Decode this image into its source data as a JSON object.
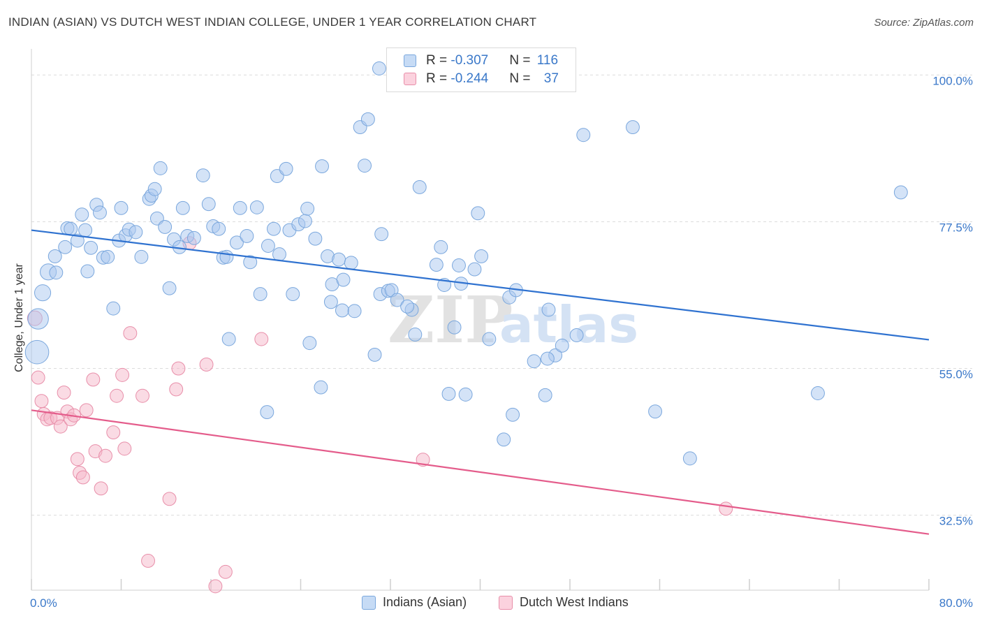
{
  "title": "INDIAN (ASIAN) VS DUTCH WEST INDIAN COLLEGE, UNDER 1 YEAR CORRELATION CHART",
  "source": "Source: ZipAtlas.com",
  "watermark": {
    "zip": "ZIP",
    "atlas": "atlas"
  },
  "legend_top": {
    "rows": [
      {
        "r_label": "R = ",
        "r_value": "-0.307",
        "n_label": "N = ",
        "n_value": "116",
        "color": "#a9c8ef"
      },
      {
        "r_label": "R = ",
        "r_value": "-0.244",
        "n_label": "N = ",
        "n_value": "37",
        "color": "#f5b8c9"
      }
    ]
  },
  "legend_bottom": {
    "items": [
      {
        "label": "Indians (Asian)",
        "color": "#a9c8ef"
      },
      {
        "label": "Dutch West Indians",
        "color": "#f5b8c9"
      }
    ]
  },
  "chart_data": {
    "type": "scatter",
    "title": "INDIAN (ASIAN) VS DUTCH WEST INDIAN COLLEGE, UNDER 1 YEAR CORRELATION CHART",
    "xlabel": "",
    "ylabel": "College, Under 1 year",
    "xlim": [
      0,
      80
    ],
    "ylim": [
      21,
      104
    ],
    "x_tick_labels": [
      "0.0%",
      "80.0%"
    ],
    "y_ticks": [
      32.5,
      55.0,
      77.5,
      100.0
    ],
    "y_tick_labels": [
      "32.5%",
      "55.0%",
      "77.5%",
      "100.0%"
    ],
    "grid": true,
    "series": [
      {
        "name": "Indians (Asian)",
        "color": "#a9c8ef",
        "edge": "#7aa7dd",
        "trend": {
          "x": [
            0,
            80
          ],
          "y": [
            76.2,
            59.4
          ],
          "color": "#2f72d0"
        },
        "points": [
          [
            0.5,
            57.5,
            1.6
          ],
          [
            0.6,
            62.6,
            1.4
          ],
          [
            1.0,
            66.6,
            1.1
          ],
          [
            1.5,
            69.8,
            1.1
          ],
          [
            2.2,
            69.7,
            0.9
          ],
          [
            2.1,
            72.2,
            0.9
          ],
          [
            3.0,
            73.6,
            0.9
          ],
          [
            3.2,
            76.5,
            0.9
          ],
          [
            3.5,
            76.4,
            0.9
          ],
          [
            4.1,
            74.6,
            0.9
          ],
          [
            4.5,
            78.6,
            0.9
          ],
          [
            4.8,
            76.2,
            0.9
          ],
          [
            5.3,
            73.5,
            0.9
          ],
          [
            5.8,
            80.1,
            0.9
          ],
          [
            6.1,
            78.9,
            0.9
          ],
          [
            6.4,
            72.0,
            0.9
          ],
          [
            6.8,
            72.1,
            0.9
          ],
          [
            7.3,
            64.2,
            0.9
          ],
          [
            7.8,
            74.6,
            0.9
          ],
          [
            8.0,
            79.6,
            0.9
          ],
          [
            8.4,
            75.4,
            0.9
          ],
          [
            8.7,
            76.3,
            0.9
          ],
          [
            9.3,
            75.9,
            0.9
          ],
          [
            9.8,
            72.1,
            0.9
          ],
          [
            10.5,
            81.0,
            0.9
          ],
          [
            10.7,
            81.5,
            0.9
          ],
          [
            11.0,
            82.5,
            0.9
          ],
          [
            11.2,
            78.0,
            0.9
          ],
          [
            11.5,
            85.7,
            0.9
          ],
          [
            11.9,
            76.7,
            0.9
          ],
          [
            12.3,
            67.3,
            0.9
          ],
          [
            12.7,
            74.8,
            0.9
          ],
          [
            13.2,
            73.6,
            0.9
          ],
          [
            13.5,
            79.6,
            0.9
          ],
          [
            13.9,
            75.3,
            0.9
          ],
          [
            14.5,
            75.0,
            0.9
          ],
          [
            15.3,
            84.6,
            0.9
          ],
          [
            15.8,
            80.2,
            0.9
          ],
          [
            16.2,
            76.8,
            0.9
          ],
          [
            16.7,
            76.4,
            0.9
          ],
          [
            17.1,
            72.0,
            0.9
          ],
          [
            17.4,
            72.1,
            0.9
          ],
          [
            17.6,
            59.5,
            0.9
          ],
          [
            18.3,
            74.3,
            0.9
          ],
          [
            18.6,
            79.6,
            0.9
          ],
          [
            19.2,
            75.3,
            0.9
          ],
          [
            19.5,
            71.3,
            0.9
          ],
          [
            20.1,
            79.7,
            0.9
          ],
          [
            20.4,
            66.4,
            0.9
          ],
          [
            21.0,
            48.3,
            0.9
          ],
          [
            21.1,
            73.8,
            0.9
          ],
          [
            21.6,
            76.4,
            0.9
          ],
          [
            21.9,
            84.5,
            0.9
          ],
          [
            22.1,
            72.5,
            0.9
          ],
          [
            22.7,
            85.6,
            0.9
          ],
          [
            23.0,
            76.2,
            0.9
          ],
          [
            23.3,
            66.4,
            0.9
          ],
          [
            23.8,
            77.1,
            0.9
          ],
          [
            24.4,
            77.6,
            0.9
          ],
          [
            24.6,
            79.5,
            0.9
          ],
          [
            24.8,
            58.9,
            0.9
          ],
          [
            25.3,
            74.9,
            0.9
          ],
          [
            25.8,
            52.1,
            0.9
          ],
          [
            25.9,
            86.0,
            0.9
          ],
          [
            26.4,
            72.2,
            0.9
          ],
          [
            26.7,
            65.2,
            0.9
          ],
          [
            26.8,
            67.9,
            0.9
          ],
          [
            27.4,
            71.7,
            0.9
          ],
          [
            27.7,
            63.9,
            0.9
          ],
          [
            27.8,
            68.6,
            0.9
          ],
          [
            28.5,
            71.2,
            0.9
          ],
          [
            28.8,
            63.8,
            0.9
          ],
          [
            29.3,
            92.0,
            0.9
          ],
          [
            29.7,
            86.1,
            0.9
          ],
          [
            30.0,
            93.2,
            0.9
          ],
          [
            30.6,
            57.1,
            0.9
          ],
          [
            31.1,
            66.4,
            0.9
          ],
          [
            31.2,
            75.6,
            0.9
          ],
          [
            31.8,
            66.9,
            0.9
          ],
          [
            32.1,
            67.0,
            0.9
          ],
          [
            32.6,
            65.5,
            0.9
          ],
          [
            33.9,
            64.0,
            0.9
          ],
          [
            34.2,
            60.2,
            0.9
          ],
          [
            34.6,
            82.8,
            0.9
          ],
          [
            36.1,
            70.9,
            0.9
          ],
          [
            36.5,
            73.6,
            0.9
          ],
          [
            36.8,
            67.8,
            0.9
          ],
          [
            37.2,
            51.1,
            0.9
          ],
          [
            37.7,
            61.3,
            0.9
          ],
          [
            38.1,
            70.8,
            0.9
          ],
          [
            38.3,
            68.0,
            0.9
          ],
          [
            38.7,
            51.0,
            0.9
          ],
          [
            39.5,
            70.2,
            0.9
          ],
          [
            39.8,
            78.8,
            0.9
          ],
          [
            40.1,
            72.2,
            0.9
          ],
          [
            40.8,
            59.5,
            0.9
          ],
          [
            42.1,
            44.1,
            0.9
          ],
          [
            42.6,
            65.9,
            0.9
          ],
          [
            42.9,
            47.9,
            0.9
          ],
          [
            43.2,
            67.0,
            0.9
          ],
          [
            44.8,
            56.1,
            0.9
          ],
          [
            45.8,
            50.9,
            0.9
          ],
          [
            46.1,
            64.0,
            0.9
          ],
          [
            46.7,
            57.0,
            0.9
          ],
          [
            47.3,
            58.5,
            0.9
          ],
          [
            48.6,
            60.1,
            0.9
          ],
          [
            49.2,
            90.8,
            0.9
          ],
          [
            53.6,
            92.0,
            0.9
          ],
          [
            55.6,
            48.4,
            0.9
          ],
          [
            58.7,
            41.2,
            0.9
          ],
          [
            70.1,
            51.2,
            0.9
          ],
          [
            77.5,
            82.0,
            0.9
          ],
          [
            31.0,
            101.0,
            0.9
          ],
          [
            46.0,
            56.5,
            0.9
          ],
          [
            33.5,
            64.5,
            0.9
          ],
          [
            5.0,
            69.9,
            0.9
          ]
        ]
      },
      {
        "name": "Dutch West Indians",
        "color": "#f5b8c9",
        "edge": "#e88ea9",
        "trend": {
          "x": [
            0,
            80
          ],
          "y": [
            48.6,
            29.6
          ],
          "color": "#e45c8b"
        },
        "points": [
          [
            0.3,
            62.7,
            1.0
          ],
          [
            0.6,
            53.6,
            0.9
          ],
          [
            0.9,
            50.0,
            0.9
          ],
          [
            1.1,
            48.0,
            0.9
          ],
          [
            1.4,
            47.2,
            0.9
          ],
          [
            1.7,
            47.4,
            0.9
          ],
          [
            2.3,
            47.4,
            0.9
          ],
          [
            2.6,
            46.1,
            0.9
          ],
          [
            2.9,
            51.3,
            0.9
          ],
          [
            3.2,
            48.4,
            0.9
          ],
          [
            3.5,
            47.2,
            0.9
          ],
          [
            3.8,
            47.8,
            0.9
          ],
          [
            4.1,
            41.1,
            0.9
          ],
          [
            4.3,
            39.0,
            0.9
          ],
          [
            4.6,
            38.3,
            0.9
          ],
          [
            4.9,
            48.6,
            0.9
          ],
          [
            5.5,
            53.3,
            0.9
          ],
          [
            5.7,
            42.3,
            0.9
          ],
          [
            6.2,
            36.6,
            0.9
          ],
          [
            6.6,
            41.6,
            0.9
          ],
          [
            7.3,
            45.2,
            0.9
          ],
          [
            7.6,
            50.8,
            0.9
          ],
          [
            8.1,
            54.0,
            0.9
          ],
          [
            8.3,
            42.7,
            0.9
          ],
          [
            8.8,
            60.4,
            0.9
          ],
          [
            9.9,
            50.8,
            0.9
          ],
          [
            10.4,
            25.5,
            0.9
          ],
          [
            12.3,
            35.0,
            0.9
          ],
          [
            12.9,
            51.8,
            0.9
          ],
          [
            13.1,
            55.0,
            0.9
          ],
          [
            14.1,
            74.2,
            0.9
          ],
          [
            15.6,
            55.6,
            0.9
          ],
          [
            16.4,
            21.6,
            0.9
          ],
          [
            17.3,
            23.8,
            0.9
          ],
          [
            20.5,
            59.5,
            0.9
          ],
          [
            34.9,
            41.0,
            0.9
          ],
          [
            61.9,
            33.5,
            0.9
          ]
        ]
      }
    ]
  }
}
